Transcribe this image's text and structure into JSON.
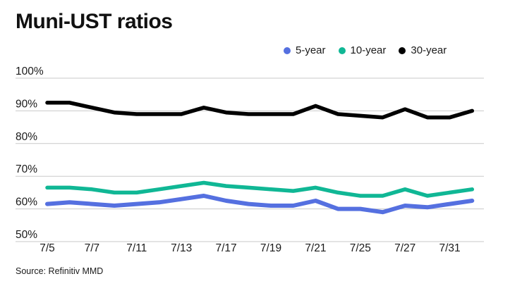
{
  "title": "Muni-UST ratios",
  "source": "Source: Refinitiv MMD",
  "colors": {
    "five_year": "#5570e0",
    "ten_year": "#10b795",
    "thirty_year": "#000000",
    "grid": "#c9c9c9",
    "text": "#1a1a1a",
    "background": "#ffffff"
  },
  "legend": {
    "items": [
      {
        "label": "5-year",
        "color": "#5570e0"
      },
      {
        "label": "10-year",
        "color": "#10b795"
      },
      {
        "label": "30-year",
        "color": "#000000"
      }
    ]
  },
  "chart_data": {
    "type": "line",
    "title": "Muni-UST ratios",
    "xlabel": "",
    "ylabel": "",
    "x": [
      "7/5",
      "7/6",
      "7/7",
      "7/10",
      "7/11",
      "7/12",
      "7/13",
      "7/14",
      "7/17",
      "7/18",
      "7/19",
      "7/20",
      "7/21",
      "7/24",
      "7/25",
      "7/26",
      "7/27",
      "7/28",
      "7/31",
      "8/1"
    ],
    "x_tick_labels": [
      "7/5",
      "7/7",
      "7/11",
      "7/13",
      "7/17",
      "7/19",
      "7/21",
      "7/25",
      "7/27",
      "7/31"
    ],
    "x_tick_indices": [
      0,
      2,
      4,
      6,
      8,
      10,
      12,
      14,
      16,
      18
    ],
    "y_axis": {
      "min": 50,
      "max": 100,
      "step": 10,
      "tick_labels": [
        "100%",
        "90%",
        "80%",
        "70%",
        "60%",
        "50%"
      ],
      "grid": true
    },
    "legend_position": "top-right",
    "series": [
      {
        "name": "5-year",
        "color": "#5570e0",
        "values": [
          61.5,
          62,
          61.5,
          61,
          61.5,
          62,
          63,
          64,
          62.5,
          61.5,
          61,
          61,
          62.5,
          60,
          60,
          59,
          61,
          60.5,
          61.5,
          62.5
        ]
      },
      {
        "name": "10-year",
        "color": "#10b795",
        "values": [
          66.5,
          66.5,
          66,
          65,
          65,
          66,
          67,
          68,
          67,
          66.5,
          66,
          65.5,
          66.5,
          65,
          64,
          64,
          66,
          64,
          65,
          66
        ]
      },
      {
        "name": "30-year",
        "color": "#000000",
        "values": [
          92.5,
          92.5,
          91,
          89.5,
          89,
          89,
          89,
          91,
          89.5,
          89,
          89,
          89,
          91.5,
          89,
          88.5,
          88,
          90.5,
          88,
          88,
          90
        ]
      }
    ]
  }
}
